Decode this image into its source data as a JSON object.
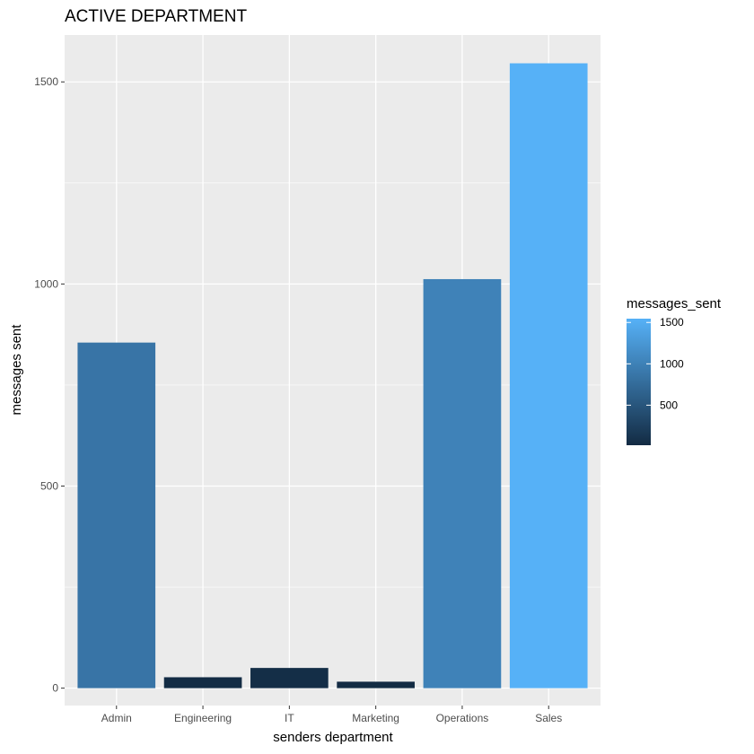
{
  "chart_data": {
    "type": "bar",
    "title": "ACTIVE DEPARTMENT",
    "xlabel": "senders department",
    "ylabel": "messages sent",
    "categories": [
      "Admin",
      "Engineering",
      "IT",
      "Marketing",
      "Operations",
      "Sales"
    ],
    "values": [
      855,
      27,
      50,
      16,
      1012,
      1546
    ],
    "ylim": [
      -43,
      1616
    ],
    "yticks": [
      0,
      500,
      1000,
      1500
    ],
    "ytick_labels": [
      "0",
      "500",
      "1000",
      "1500"
    ],
    "grid": true,
    "legend": {
      "title": "messages_sent",
      "position": "right",
      "labels": [
        "1500",
        "1000",
        "500"
      ],
      "values": [
        1500,
        1000,
        500
      ],
      "min": 16,
      "max": 1546
    },
    "colors": {
      "panel_background": "#ebebeb",
      "grid": "#ffffff",
      "low": "#132b43",
      "high": "#56b1f7"
    }
  }
}
